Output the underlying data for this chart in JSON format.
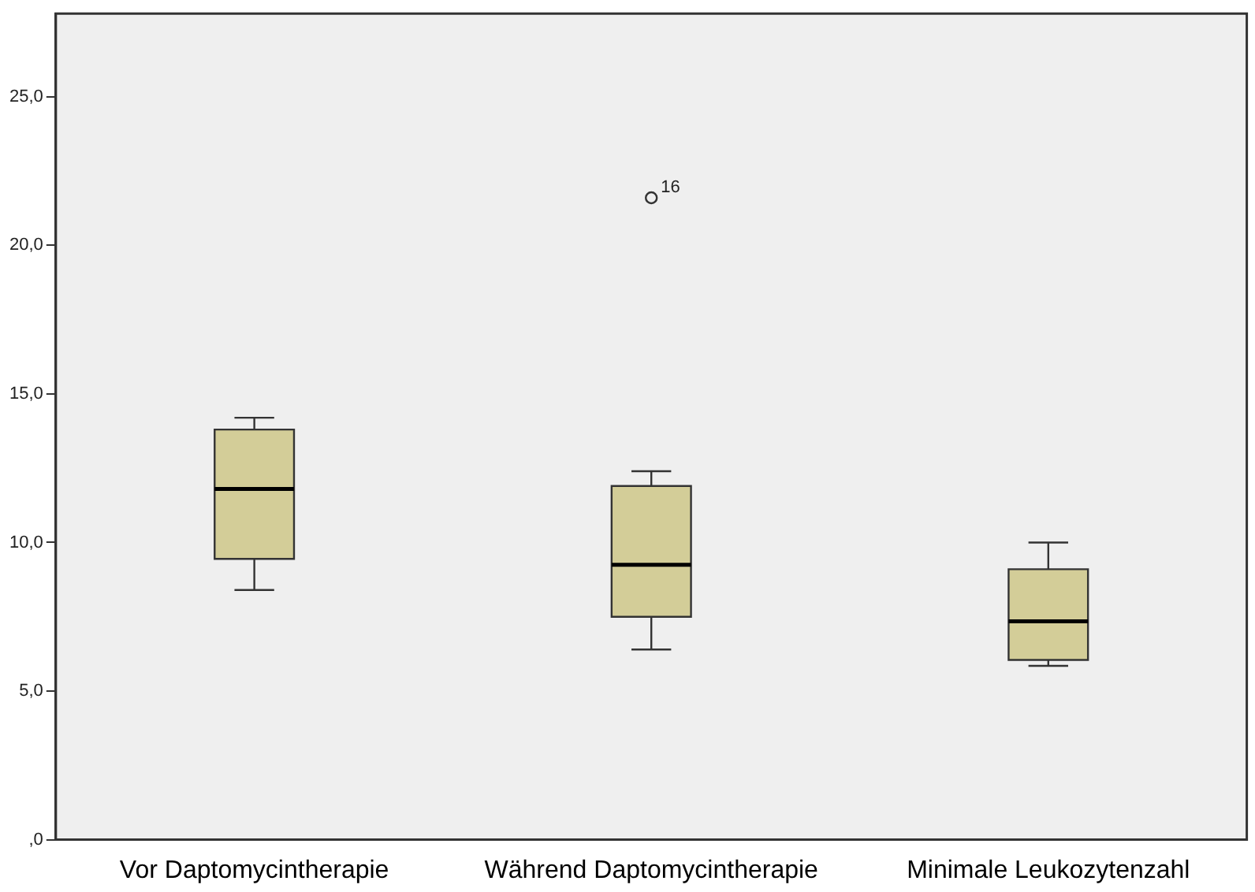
{
  "chart_data": {
    "type": "box",
    "categories": [
      "Vor Daptomycintherapie",
      "Während Daptomycintherapie",
      "Minimale Leukozytenzahl"
    ],
    "boxes": [
      {
        "low": 8.4,
        "q1": 9.45,
        "median": 11.8,
        "q3": 13.8,
        "high": 14.2
      },
      {
        "low": 6.4,
        "q1": 7.5,
        "median": 9.25,
        "q3": 11.9,
        "high": 12.4,
        "outliers": [
          21.6
        ]
      },
      {
        "low": 5.85,
        "q1": 6.05,
        "median": 7.35,
        "q3": 9.1,
        "high": 10.0
      }
    ],
    "color": "#d3cd98",
    "ylim": [
      0,
      27.8
    ],
    "yticks": [
      {
        "value": 0,
        "label": ",0"
      },
      {
        "value": 5,
        "label": "5,0"
      },
      {
        "value": 10,
        "label": "10,0"
      },
      {
        "value": 15,
        "label": "15,0"
      },
      {
        "value": 20,
        "label": "20,0"
      },
      {
        "value": 25,
        "label": "25,0"
      }
    ],
    "annotations": [
      "16"
    ],
    "grid": false,
    "legend": false
  }
}
